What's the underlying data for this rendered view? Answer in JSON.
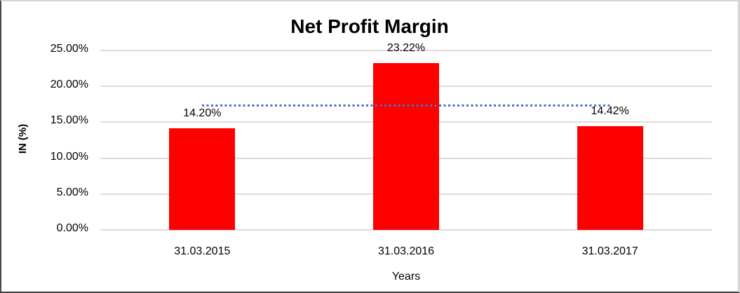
{
  "chart_data": {
    "type": "bar",
    "title": "Net Profit Margin",
    "categories": [
      "31.03.2015",
      "31.03.2016",
      "31.03.2017"
    ],
    "values": [
      14.2,
      23.22,
      14.42
    ],
    "data_labels": [
      "14.20%",
      "23.22%",
      "14.42%"
    ],
    "xlabel": "Years",
    "ylabel": "IN (%)",
    "ylim": [
      0,
      25
    ],
    "y_ticks": [
      0,
      5,
      10,
      15,
      20,
      25
    ],
    "y_tick_labels": [
      "0.00%",
      "5.00%",
      "10.00%",
      "15.00%",
      "20.00%",
      "25.00%"
    ],
    "grid": true,
    "legend": "none",
    "bar_color": "#ff0000",
    "gridline_color": "#dcdcdc",
    "text_color": "#000000",
    "trendline": {
      "type": "average",
      "value": 17.28,
      "style": "dotted",
      "color": "#4472c4"
    }
  }
}
